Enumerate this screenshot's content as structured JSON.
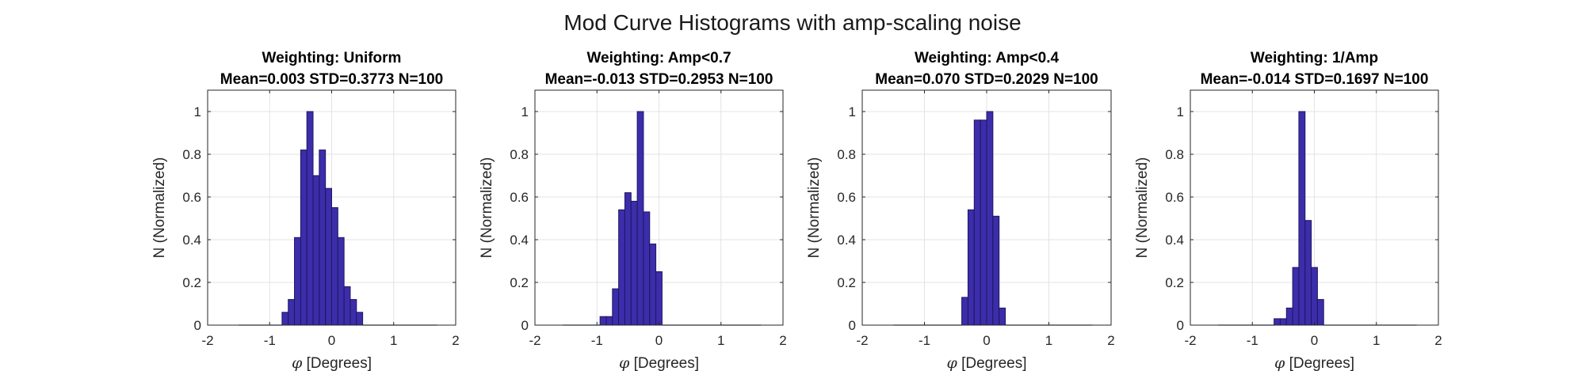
{
  "figure_title": "Mod Curve Histograms with amp-scaling noise",
  "colors": {
    "bar_fill": "#3C2DAA",
    "bar_edge": "#1E1660",
    "grid": "#e3e3e3",
    "axis": "#262626"
  },
  "chart_data": [
    {
      "type": "bar",
      "title": "Weighting: Uniform",
      "subtitle": "Mean=0.003 STD=0.3773 N=100",
      "xlabel_symbol": "φ",
      "xlabel": "[Degrees]",
      "ylabel": "N (Normalized)",
      "xlim": [
        -2,
        2
      ],
      "ylim": [
        0,
        1.1
      ],
      "xticks": [
        "-2",
        "-1",
        "0",
        "1",
        "2"
      ],
      "yticks": [
        "0",
        "0.2",
        "0.4",
        "0.6",
        "0.8",
        "1"
      ],
      "grid": true,
      "bin_edges": [
        -1.5,
        -1.4,
        -1.3,
        -1.2,
        -1.1,
        -1.0,
        -0.9,
        -0.8,
        -0.7,
        -0.6,
        -0.5,
        -0.4,
        -0.3,
        -0.2,
        -0.1,
        0.0,
        0.1,
        0.2,
        0.3,
        0.4,
        0.5,
        0.6,
        0.7,
        0.8,
        0.9,
        1.0,
        1.1,
        1.2,
        1.3,
        1.4,
        1.5,
        1.6,
        1.7
      ],
      "values": [
        0,
        0,
        0,
        0,
        0,
        0,
        0,
        0.06,
        0.12,
        0.41,
        0.82,
        1.0,
        0.7,
        0.82,
        0.64,
        0.55,
        0.41,
        0.18,
        0.12,
        0.06,
        0,
        0,
        0,
        0,
        0,
        0,
        0,
        0,
        0,
        0,
        0,
        0
      ]
    },
    {
      "type": "bar",
      "title": "Weighting: Amp<0.7",
      "subtitle": "Mean=-0.013 STD=0.2953 N=100",
      "xlabel_symbol": "φ",
      "xlabel": "[Degrees]",
      "ylabel": "N (Normalized)",
      "xlim": [
        -2,
        2
      ],
      "ylim": [
        0,
        1.1
      ],
      "xticks": [
        "-2",
        "-1",
        "0",
        "1",
        "2"
      ],
      "yticks": [
        "0",
        "0.2",
        "0.4",
        "0.6",
        "0.8",
        "1"
      ],
      "grid": true,
      "bin_edges": [
        -1.55,
        -1.45,
        -1.35,
        -1.25,
        -1.15,
        -1.05,
        -0.95,
        -0.85,
        -0.75,
        -0.65,
        -0.55,
        -0.45,
        -0.35,
        -0.25,
        -0.15,
        -0.05,
        0.05,
        0.15,
        0.25,
        0.35,
        0.45,
        0.55,
        0.65,
        0.75,
        0.85,
        0.95,
        1.05,
        1.15,
        1.25,
        1.35,
        1.45,
        1.55,
        1.65
      ],
      "values": [
        0,
        0,
        0,
        0,
        0,
        0,
        0.04,
        0.04,
        0.17,
        0.54,
        0.62,
        0.58,
        1.0,
        0.53,
        0.38,
        0.25,
        0,
        0,
        0,
        0,
        0,
        0,
        0,
        0,
        0,
        0,
        0,
        0,
        0,
        0,
        0,
        0
      ]
    },
    {
      "type": "bar",
      "title": "Weighting: Amp<0.4",
      "subtitle": "Mean=0.070 STD=0.2029 N=100",
      "xlabel_symbol": "φ",
      "xlabel": "[Degrees]",
      "ylabel": "N (Normalized)",
      "xlim": [
        -2,
        2
      ],
      "ylim": [
        0,
        1.1
      ],
      "xticks": [
        "-2",
        "-1",
        "0",
        "1",
        "2"
      ],
      "yticks": [
        "0",
        "0.2",
        "0.4",
        "0.6",
        "0.8",
        "1"
      ],
      "grid": true,
      "bin_edges": [
        -1.5,
        -1.4,
        -1.3,
        -1.2,
        -1.1,
        -1.0,
        -0.9,
        -0.8,
        -0.7,
        -0.6,
        -0.5,
        -0.4,
        -0.3,
        -0.2,
        -0.1,
        0.0,
        0.1,
        0.2,
        0.3,
        0.4,
        0.5,
        0.6,
        0.7,
        0.8,
        0.9,
        1.0,
        1.1,
        1.2,
        1.3,
        1.4,
        1.5,
        1.6,
        1.7
      ],
      "values": [
        0,
        0,
        0,
        0,
        0,
        0,
        0,
        0,
        0,
        0,
        0,
        0.13,
        0.54,
        0.96,
        0.96,
        1.0,
        0.51,
        0.08,
        0,
        0,
        0,
        0,
        0,
        0,
        0,
        0,
        0,
        0,
        0,
        0,
        0,
        0
      ]
    },
    {
      "type": "bar",
      "title": "Weighting: 1/Amp",
      "subtitle": "Mean=-0.014 STD=0.1697 N=100",
      "xlabel_symbol": "φ",
      "xlabel": "[Degrees]",
      "ylabel": "N (Normalized)",
      "xlim": [
        -2,
        2
      ],
      "ylim": [
        0,
        1.1
      ],
      "xticks": [
        "-2",
        "-1",
        "0",
        "1",
        "2"
      ],
      "yticks": [
        "0",
        "0.2",
        "0.4",
        "0.6",
        "0.8",
        "1"
      ],
      "grid": true,
      "bin_edges": [
        -1.55,
        -1.45,
        -1.35,
        -1.25,
        -1.15,
        -1.05,
        -0.95,
        -0.85,
        -0.75,
        -0.65,
        -0.55,
        -0.45,
        -0.35,
        -0.25,
        -0.15,
        -0.05,
        0.05,
        0.15,
        0.25,
        0.35,
        0.45,
        0.55,
        0.65,
        0.75,
        0.85,
        0.95,
        1.05,
        1.15,
        1.25,
        1.35,
        1.45,
        1.55,
        1.65
      ],
      "values": [
        0,
        0,
        0,
        0,
        0,
        0,
        0,
        0,
        0,
        0.03,
        0.03,
        0.08,
        0.27,
        1.0,
        0.49,
        0.27,
        0.12,
        0,
        0,
        0,
        0,
        0,
        0,
        0,
        0,
        0,
        0,
        0,
        0,
        0,
        0,
        0
      ]
    }
  ]
}
